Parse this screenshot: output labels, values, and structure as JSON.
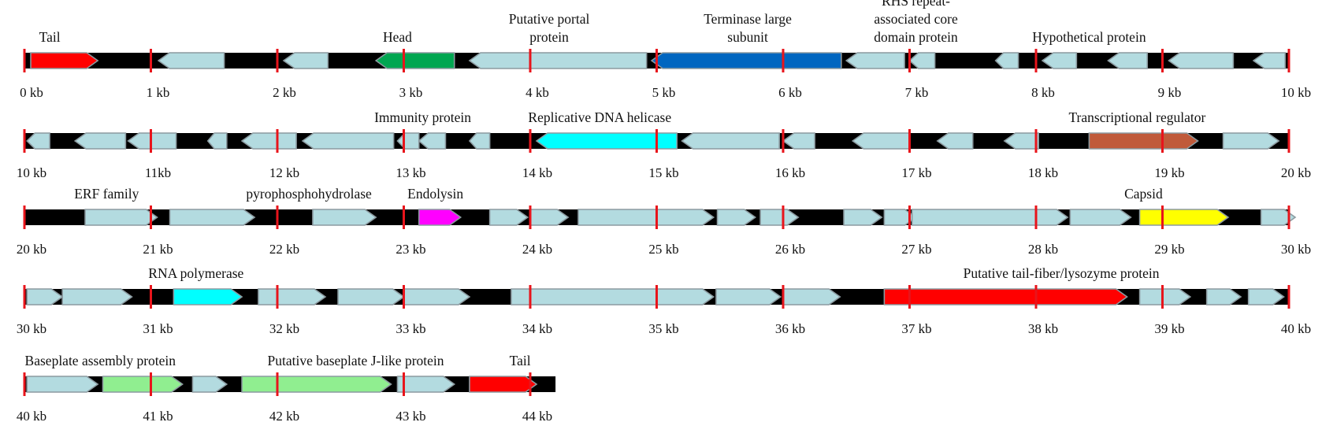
{
  "colors": {
    "backbone": "#000000",
    "tick": "#e8141b",
    "default_gene": "#b3dbe0",
    "gene_outline": "#8c9aa0"
  },
  "rows": [
    {
      "start_kb": 0,
      "end_kb": 10,
      "ticks": [
        "0 kb",
        "1 kb",
        "2 kb",
        "3 kb",
        "4 kb",
        "5 kb",
        "6 kb",
        "7 kb",
        "8 kb",
        "9 kb",
        "10 kb"
      ],
      "genes": [
        {
          "start": 0.05,
          "end": 0.58,
          "strand": "+",
          "color": "#ff0000"
        },
        {
          "start": 1.06,
          "end": 1.58,
          "strand": "-"
        },
        {
          "start": 2.05,
          "end": 2.4,
          "strand": "-"
        },
        {
          "start": 2.78,
          "end": 3.4,
          "strand": "-",
          "color": "#00a651"
        },
        {
          "start": 3.52,
          "end": 4.92,
          "strand": "-"
        },
        {
          "start": 4.96,
          "end": 6.46,
          "strand": "-",
          "color": "#0066c0"
        },
        {
          "start": 6.5,
          "end": 6.96,
          "strand": "-"
        },
        {
          "start": 7.0,
          "end": 7.2,
          "strand": "-"
        },
        {
          "start": 7.68,
          "end": 7.86,
          "strand": "-"
        },
        {
          "start": 8.05,
          "end": 8.32,
          "strand": "-"
        },
        {
          "start": 8.57,
          "end": 8.88,
          "strand": "-"
        },
        {
          "start": 9.05,
          "end": 9.56,
          "strand": "-"
        },
        {
          "start": 9.72,
          "end": 9.97,
          "strand": "-"
        }
      ],
      "labels": [
        {
          "lines": [
            "Tail"
          ],
          "kb": 0.2,
          "anchor": "middle"
        },
        {
          "lines": [
            "Head"
          ],
          "kb": 2.95,
          "anchor": "middle"
        },
        {
          "lines": [
            "Putative portal",
            "protein"
          ],
          "kb": 4.15,
          "anchor": "middle"
        },
        {
          "lines": [
            "Terminase large",
            "subunit"
          ],
          "kb": 5.72,
          "anchor": "middle"
        },
        {
          "lines": [
            "RHS repeat-",
            "associated core",
            "domain protein"
          ],
          "kb": 7.05,
          "anchor": "middle"
        },
        {
          "lines": [
            "Hypothetical protein"
          ],
          "kb": 8.42,
          "anchor": "middle"
        }
      ]
    },
    {
      "start_kb": 10,
      "end_kb": 20,
      "ticks": [
        "10 kb",
        "11kb",
        "12 kb",
        "13 kb",
        "14 kb",
        "15 kb",
        "16 kb",
        "17 kb",
        "18 kb",
        "19 kb",
        "20  kb"
      ],
      "genes": [
        {
          "start": 10.02,
          "end": 10.2,
          "strand": "-"
        },
        {
          "start": 10.4,
          "end": 10.8,
          "strand": "-"
        },
        {
          "start": 10.82,
          "end": 11.2,
          "strand": "-"
        },
        {
          "start": 11.45,
          "end": 11.6,
          "strand": "-"
        },
        {
          "start": 11.72,
          "end": 12.15,
          "strand": "-"
        },
        {
          "start": 12.2,
          "end": 12.92,
          "strand": "-"
        },
        {
          "start": 12.95,
          "end": 13.12,
          "strand": "-"
        },
        {
          "start": 13.12,
          "end": 13.33,
          "strand": "-"
        },
        {
          "start": 13.52,
          "end": 13.68,
          "strand": "-"
        },
        {
          "start": 14.05,
          "end": 15.16,
          "strand": "-",
          "color": "#00ffff"
        },
        {
          "start": 15.2,
          "end": 15.97,
          "strand": "-"
        },
        {
          "start": 16.0,
          "end": 16.25,
          "strand": "-"
        },
        {
          "start": 16.55,
          "end": 17.0,
          "strand": "-"
        },
        {
          "start": 17.22,
          "end": 17.5,
          "strand": "-"
        },
        {
          "start": 17.75,
          "end": 18.02,
          "strand": "-"
        },
        {
          "start": 18.42,
          "end": 19.28,
          "strand": "+",
          "color": "#c05a3a"
        },
        {
          "start": 19.48,
          "end": 19.92,
          "strand": "+"
        }
      ],
      "labels": [
        {
          "lines": [
            "Immunity protein"
          ],
          "kb": 13.15,
          "anchor": "middle"
        },
        {
          "lines": [
            "Replicative DNA helicase"
          ],
          "kb": 14.55,
          "anchor": "middle"
        },
        {
          "lines": [
            "Transcriptional regulator"
          ],
          "kb": 18.8,
          "anchor": "middle"
        }
      ]
    },
    {
      "start_kb": 20,
      "end_kb": 30,
      "ticks": [
        "20 kb",
        "21 kb",
        "22 kb",
        "23 kb",
        "24 kb",
        "25 kb",
        "26 kb",
        "27 kb",
        "28 kb",
        "29 kb",
        "30 kb"
      ],
      "genes": [
        {
          "start": 20.48,
          "end": 21.05,
          "strand": "+"
        },
        {
          "start": 21.15,
          "end": 21.82,
          "strand": "+"
        },
        {
          "start": 22.28,
          "end": 22.78,
          "strand": "+"
        },
        {
          "start": 23.12,
          "end": 23.45,
          "strand": "+",
          "color": "#ff00ff"
        },
        {
          "start": 23.68,
          "end": 23.98,
          "strand": "+"
        },
        {
          "start": 24.0,
          "end": 24.3,
          "strand": "+"
        },
        {
          "start": 24.38,
          "end": 25.45,
          "strand": "+"
        },
        {
          "start": 25.48,
          "end": 25.78,
          "strand": "+"
        },
        {
          "start": 25.82,
          "end": 26.12,
          "strand": "+"
        },
        {
          "start": 26.48,
          "end": 26.78,
          "strand": "+"
        },
        {
          "start": 26.8,
          "end": 27.05,
          "strand": "+"
        },
        {
          "start": 27.02,
          "end": 28.25,
          "strand": "+"
        },
        {
          "start": 28.27,
          "end": 28.75,
          "strand": "+"
        },
        {
          "start": 28.82,
          "end": 29.52,
          "strand": "+",
          "color": "#ffff00"
        },
        {
          "start": 29.78,
          "end": 30.05,
          "strand": "+"
        }
      ],
      "labels": [
        {
          "lines": [
            "ERF family"
          ],
          "kb": 20.65,
          "anchor": "middle"
        },
        {
          "lines": [
            "pyrophosphohydrolase"
          ],
          "kb": 22.25,
          "anchor": "middle"
        },
        {
          "lines": [
            "Endolysin"
          ],
          "kb": 23.25,
          "anchor": "middle"
        },
        {
          "lines": [
            "Capsid"
          ],
          "kb": 28.85,
          "anchor": "middle"
        }
      ]
    },
    {
      "start_kb": 30,
      "end_kb": 40,
      "ticks": [
        "30 kb",
        "31 kb",
        "32 kb",
        "33 kb",
        "34 kb",
        "35 kb",
        "36 kb",
        "37 kb",
        "38 kb",
        "39 kb",
        "40 kb"
      ],
      "genes": [
        {
          "start": 30.02,
          "end": 30.3,
          "strand": "+"
        },
        {
          "start": 30.3,
          "end": 30.85,
          "strand": "+"
        },
        {
          "start": 31.18,
          "end": 31.72,
          "strand": "+",
          "color": "#00ffff"
        },
        {
          "start": 31.85,
          "end": 32.38,
          "strand": "+"
        },
        {
          "start": 32.48,
          "end": 33.0,
          "strand": "+"
        },
        {
          "start": 33.0,
          "end": 33.52,
          "strand": "+"
        },
        {
          "start": 33.85,
          "end": 35.45,
          "strand": "+"
        },
        {
          "start": 35.47,
          "end": 35.98,
          "strand": "+"
        },
        {
          "start": 36.0,
          "end": 36.45,
          "strand": "+"
        },
        {
          "start": 36.8,
          "end": 38.72,
          "strand": "+",
          "color": "#ff0000"
        },
        {
          "start": 38.82,
          "end": 39.22,
          "strand": "+"
        },
        {
          "start": 39.35,
          "end": 39.62,
          "strand": "+"
        },
        {
          "start": 39.68,
          "end": 39.96,
          "strand": "+"
        }
      ],
      "labels": [
        {
          "lines": [
            "RNA polymerase"
          ],
          "kb": 30.98,
          "anchor": "start"
        },
        {
          "lines": [
            "Putative tail-fiber/lysozyme protein"
          ],
          "kb": 38.2,
          "anchor": "middle"
        }
      ]
    },
    {
      "start_kb": 40,
      "end_kb": 44.2,
      "ticks": [
        "40 kb",
        "41 kb",
        "42 kb",
        "43 kb",
        "44 kb"
      ],
      "genes": [
        {
          "start": 40.02,
          "end": 40.58,
          "strand": "+"
        },
        {
          "start": 40.62,
          "end": 41.25,
          "strand": "+",
          "color": "#90ee90"
        },
        {
          "start": 41.33,
          "end": 41.6,
          "strand": "+"
        },
        {
          "start": 41.72,
          "end": 42.9,
          "strand": "+",
          "color": "#90ee90"
        },
        {
          "start": 42.95,
          "end": 43.4,
          "strand": "+"
        },
        {
          "start": 43.52,
          "end": 44.05,
          "strand": "+",
          "color": "#ff0000"
        }
      ],
      "labels": [
        {
          "lines": [
            "Baseplate assembly protein"
          ],
          "kb": 40.6,
          "anchor": "middle"
        },
        {
          "lines": [
            "Putative baseplate J-like protein"
          ],
          "kb": 42.62,
          "anchor": "middle"
        },
        {
          "lines": [
            "Tail"
          ],
          "kb": 43.92,
          "anchor": "middle"
        }
      ]
    }
  ]
}
